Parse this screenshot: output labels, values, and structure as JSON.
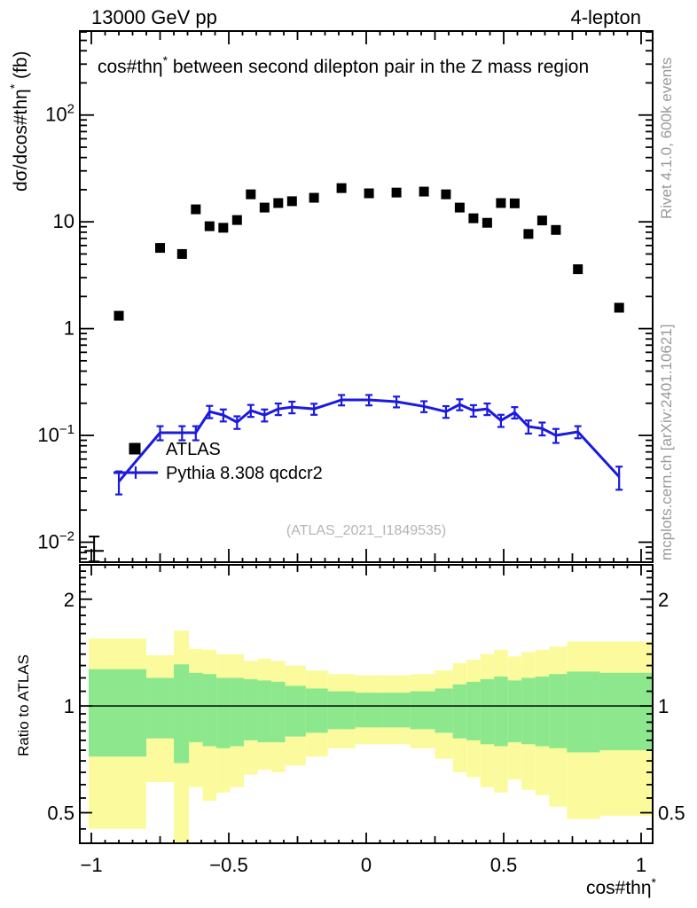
{
  "header": {
    "left": "13000 GeV pp",
    "right": "4-lepton"
  },
  "title": {
    "pre": "cos#thη",
    "sup": "*",
    "post": " between second dilepton pair in the Z mass region"
  },
  "watermark": "(ATLAS_2021_I1849535)",
  "side_labels": {
    "rivet": "Rivet 4.1.0,  600k events",
    "mcplots": "mcplots.cern.ch [arXiv:2401.10621]"
  },
  "legend": [
    {
      "label": "ATLAS",
      "type": "data-points"
    },
    {
      "label": "Pythia 8.308 qcdcr2",
      "type": "mc-line"
    }
  ],
  "axes": {
    "y_title": {
      "pre": "dσ/dcos#thη",
      "sup": "*",
      "post": " (fb)"
    },
    "x_title": {
      "pre": "cos#thη",
      "sup": "*"
    },
    "ratio_title": "Ratio to ATLAS"
  },
  "colors": {
    "data": "#000000",
    "mc": "#1a1ae0",
    "band_outer": "#fbfb9e",
    "band_inner": "#8de88d",
    "gray_text": "#999999",
    "watermark": "#b4b4b4"
  },
  "chart_data": {
    "type": "scatter+line with ratio bands",
    "title": "cos#thη* between second dilepton pair in the Z mass region",
    "xlabel": "cos#thη*",
    "ylabel": "dσ/dcos#thη* (fb)",
    "ratio_ylabel": "Ratio to ATLAS",
    "x_range": [
      -1.042,
      1.042
    ],
    "y_range_main": [
      0.0065,
      612
    ],
    "y_range_ratio": [
      0.41,
      2.5
    ],
    "y_scale": "log",
    "ratio_scale": "log",
    "x_ticks": [
      {
        "v": -1,
        "t": "−1"
      },
      {
        "v": -0.5,
        "t": "−0.5"
      },
      {
        "v": 0,
        "t": "0"
      },
      {
        "v": 0.5,
        "t": "0.5"
      },
      {
        "v": 1,
        "t": "1"
      }
    ],
    "y_ticks_main": [
      {
        "v": 100,
        "base": "10",
        "exp": "2"
      },
      {
        "v": 10,
        "base": "10",
        "exp": ""
      },
      {
        "v": 1,
        "base": "1",
        "exp": ""
      },
      {
        "v": 0.1,
        "base": "10",
        "exp": "−1"
      },
      {
        "v": 0.01,
        "base": "10",
        "exp": "−2"
      }
    ],
    "y_ticks_ratio": [
      {
        "v": 2,
        "t": "2"
      },
      {
        "v": 1,
        "t": "1"
      },
      {
        "v": 0.5,
        "t": "0.5"
      }
    ],
    "ratio_line": 1.0,
    "series": [
      {
        "name": "ATLAS",
        "type": "points",
        "marker": "filled-square",
        "color": "#000000",
        "points": [
          {
            "x": -0.99,
            "v": 0.0083,
            "elo": 0.0017,
            "ehi": 0.003,
            "xw": 0.035,
            "nomarker": true
          },
          {
            "x": -0.9,
            "v": 1.32
          },
          {
            "x": -0.75,
            "v": 5.7
          },
          {
            "x": -0.67,
            "v": 5.0
          },
          {
            "x": -0.62,
            "v": 13.1
          },
          {
            "x": -0.57,
            "v": 9.1
          },
          {
            "x": -0.52,
            "v": 8.8
          },
          {
            "x": -0.47,
            "v": 10.4
          },
          {
            "x": -0.42,
            "v": 18.1
          },
          {
            "x": -0.37,
            "v": 13.6
          },
          {
            "x": -0.32,
            "v": 15.0
          },
          {
            "x": -0.27,
            "v": 15.6
          },
          {
            "x": -0.19,
            "v": 16.8
          },
          {
            "x": -0.09,
            "v": 20.7
          },
          {
            "x": 0.01,
            "v": 18.5
          },
          {
            "x": 0.11,
            "v": 18.8
          },
          {
            "x": 0.21,
            "v": 19.2
          },
          {
            "x": 0.29,
            "v": 18.1
          },
          {
            "x": 0.34,
            "v": 13.6
          },
          {
            "x": 0.39,
            "v": 10.8
          },
          {
            "x": 0.44,
            "v": 9.8
          },
          {
            "x": 0.49,
            "v": 15.0
          },
          {
            "x": 0.54,
            "v": 14.9
          },
          {
            "x": 0.59,
            "v": 7.7
          },
          {
            "x": 0.64,
            "v": 10.3
          },
          {
            "x": 0.69,
            "v": 8.4
          },
          {
            "x": 0.77,
            "v": 3.6
          },
          {
            "x": 0.92,
            "v": 1.57
          }
        ]
      },
      {
        "name": "Pythia 8.308 qcdcr2",
        "type": "line+errorbars",
        "color": "#1a1ae0",
        "points": [
          {
            "x": -0.9,
            "v": 0.037,
            "e": 0.009
          },
          {
            "x": -0.75,
            "v": 0.106,
            "e": 0.016
          },
          {
            "x": -0.67,
            "v": 0.106,
            "e": 0.016
          },
          {
            "x": -0.62,
            "v": 0.106,
            "e": 0.016
          },
          {
            "x": -0.57,
            "v": 0.167,
            "e": 0.022
          },
          {
            "x": -0.52,
            "v": 0.155,
            "e": 0.02
          },
          {
            "x": -0.47,
            "v": 0.133,
            "e": 0.018
          },
          {
            "x": -0.42,
            "v": 0.171,
            "e": 0.022
          },
          {
            "x": -0.37,
            "v": 0.155,
            "e": 0.02
          },
          {
            "x": -0.32,
            "v": 0.177,
            "e": 0.022
          },
          {
            "x": -0.27,
            "v": 0.184,
            "e": 0.023
          },
          {
            "x": -0.19,
            "v": 0.177,
            "e": 0.021
          },
          {
            "x": -0.09,
            "v": 0.215,
            "e": 0.024
          },
          {
            "x": 0.01,
            "v": 0.215,
            "e": 0.024
          },
          {
            "x": 0.11,
            "v": 0.207,
            "e": 0.024
          },
          {
            "x": 0.21,
            "v": 0.187,
            "e": 0.022
          },
          {
            "x": 0.29,
            "v": 0.167,
            "e": 0.021
          },
          {
            "x": 0.34,
            "v": 0.195,
            "e": 0.023
          },
          {
            "x": 0.39,
            "v": 0.171,
            "e": 0.021
          },
          {
            "x": 0.44,
            "v": 0.177,
            "e": 0.022
          },
          {
            "x": 0.49,
            "v": 0.138,
            "e": 0.018
          },
          {
            "x": 0.54,
            "v": 0.164,
            "e": 0.02
          },
          {
            "x": 0.59,
            "v": 0.121,
            "e": 0.017
          },
          {
            "x": 0.64,
            "v": 0.116,
            "e": 0.016
          },
          {
            "x": 0.69,
            "v": 0.1,
            "e": 0.015
          },
          {
            "x": 0.77,
            "v": 0.108,
            "e": 0.014
          },
          {
            "x": 0.92,
            "v": 0.041,
            "e": 0.01
          }
        ]
      }
    ],
    "ratio_bands": {
      "columns": [
        "x0",
        "x1",
        "yellow_lo",
        "yellow_hi",
        "green_lo",
        "green_hi"
      ],
      "bins": [
        [
          -1.01,
          -0.8,
          0.45,
          1.55,
          0.72,
          1.27
        ],
        [
          -0.8,
          -0.7,
          0.61,
          1.39,
          0.81,
          1.2
        ],
        [
          -0.7,
          -0.645,
          0.35,
          1.63,
          0.69,
          1.31
        ],
        [
          -0.645,
          -0.595,
          0.59,
          1.45,
          0.79,
          1.24
        ],
        [
          -0.595,
          -0.545,
          0.54,
          1.44,
          0.77,
          1.23
        ],
        [
          -0.545,
          -0.495,
          0.57,
          1.4,
          0.76,
          1.2
        ],
        [
          -0.495,
          -0.445,
          0.59,
          1.4,
          0.77,
          1.2
        ],
        [
          -0.445,
          -0.395,
          0.64,
          1.34,
          0.8,
          1.19
        ],
        [
          -0.395,
          -0.345,
          0.66,
          1.36,
          0.79,
          1.18
        ],
        [
          -0.345,
          -0.295,
          0.65,
          1.34,
          0.79,
          1.17
        ],
        [
          -0.295,
          -0.22,
          0.68,
          1.3,
          0.82,
          1.14
        ],
        [
          -0.22,
          -0.14,
          0.72,
          1.26,
          0.84,
          1.12
        ],
        [
          -0.14,
          -0.04,
          0.76,
          1.23,
          0.86,
          1.1
        ],
        [
          -0.04,
          0.06,
          0.78,
          1.22,
          0.87,
          1.09
        ],
        [
          0.06,
          0.16,
          0.78,
          1.22,
          0.87,
          1.09
        ],
        [
          0.16,
          0.25,
          0.76,
          1.23,
          0.86,
          1.1
        ],
        [
          0.25,
          0.315,
          0.71,
          1.26,
          0.84,
          1.12
        ],
        [
          0.315,
          0.365,
          0.65,
          1.32,
          0.81,
          1.15
        ],
        [
          0.365,
          0.415,
          0.63,
          1.35,
          0.8,
          1.17
        ],
        [
          0.415,
          0.465,
          0.59,
          1.4,
          0.78,
          1.19
        ],
        [
          0.465,
          0.515,
          0.57,
          1.44,
          0.77,
          1.21
        ],
        [
          0.515,
          0.565,
          0.62,
          1.38,
          0.79,
          1.18
        ],
        [
          0.565,
          0.615,
          0.58,
          1.42,
          0.78,
          1.2
        ],
        [
          0.615,
          0.665,
          0.56,
          1.44,
          0.77,
          1.21
        ],
        [
          0.665,
          0.73,
          0.52,
          1.47,
          0.76,
          1.23
        ],
        [
          0.73,
          0.85,
          0.48,
          1.52,
          0.74,
          1.25
        ],
        [
          0.85,
          1.042,
          0.49,
          1.52,
          0.75,
          1.24
        ]
      ]
    }
  }
}
